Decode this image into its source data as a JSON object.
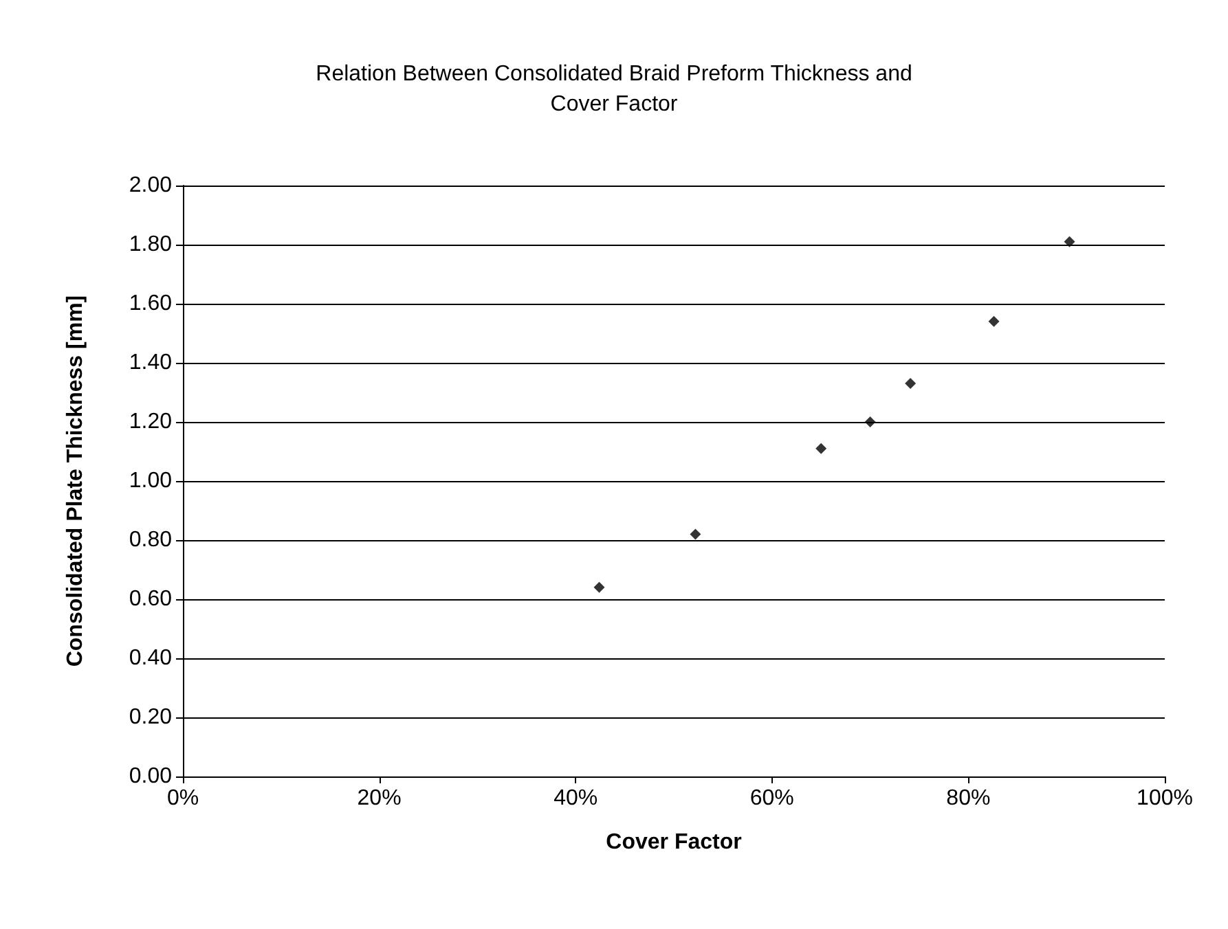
{
  "chart_data": {
    "type": "scatter",
    "title": "Relation Between Consolidated Braid Preform Thickness and\nCover Factor",
    "xlabel": "Cover Factor",
    "ylabel": "Consolidated Plate Thickness [mm]",
    "series": [
      {
        "color": "#000000",
        "x": [
          42.4,
          52.2,
          65.0,
          70.0,
          74.1,
          82.6,
          90.3
        ],
        "values": [
          0.64,
          0.82,
          1.11,
          1.2,
          1.33,
          1.54,
          1.81
        ]
      }
    ],
    "xlim": [
      0,
      100
    ],
    "xticks": [
      {
        "value": 0,
        "label": "0%"
      },
      {
        "value": 20,
        "label": "20%"
      },
      {
        "value": 40,
        "label": "40%"
      },
      {
        "value": 60,
        "label": "60%"
      },
      {
        "value": 80,
        "label": "80%"
      },
      {
        "value": 100,
        "label": "100%"
      }
    ],
    "ylim": [
      0,
      2
    ],
    "yticks": [
      {
        "value": 0,
        "label": "0.00"
      },
      {
        "value": 0.2,
        "label": "0.20"
      },
      {
        "value": 0.4,
        "label": "0.40"
      },
      {
        "value": 0.6,
        "label": "0.60"
      },
      {
        "value": 0.8,
        "label": "0.80"
      },
      {
        "value": 1,
        "label": "1.00"
      },
      {
        "value": 1.2,
        "label": "1.20"
      },
      {
        "value": 1.4,
        "label": "1.40"
      },
      {
        "value": 1.6,
        "label": "1.60"
      },
      {
        "value": 1.8,
        "label": "1.80"
      },
      {
        "value": 2,
        "label": "2.00"
      }
    ],
    "grid": "y",
    "marker": "diamond"
  }
}
